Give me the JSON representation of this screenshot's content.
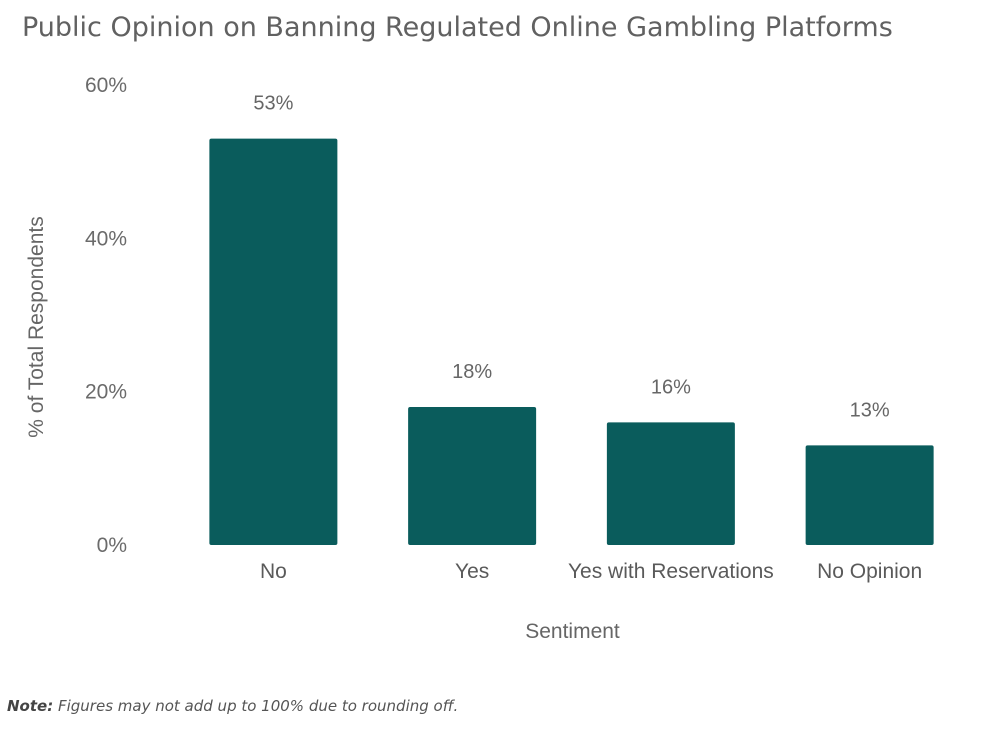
{
  "title": "Public Opinion on Banning Regulated Online Gambling Platforms",
  "note": {
    "label": "Note:",
    "text": " Figures may not add up to 100% due to rounding off."
  },
  "colors": {
    "bar": "#0a5c5c",
    "text": "#616161"
  },
  "chart_data": {
    "type": "bar",
    "title": "Public Opinion on Banning Regulated Online Gambling Platforms",
    "categories": [
      "No",
      "Yes",
      "Yes with Reservations",
      "No Opinion"
    ],
    "values": [
      53,
      18,
      16,
      13
    ],
    "value_labels": [
      "53%",
      "18%",
      "16%",
      "13%"
    ],
    "xlabel": "Sentiment",
    "ylabel": "% of Total Respondents",
    "ylim": [
      0,
      60
    ],
    "y_ticks": [
      0,
      20,
      40,
      60
    ],
    "y_tick_labels": [
      "0%",
      "20%",
      "40%",
      "60%"
    ],
    "grid": false,
    "legend": "none"
  }
}
